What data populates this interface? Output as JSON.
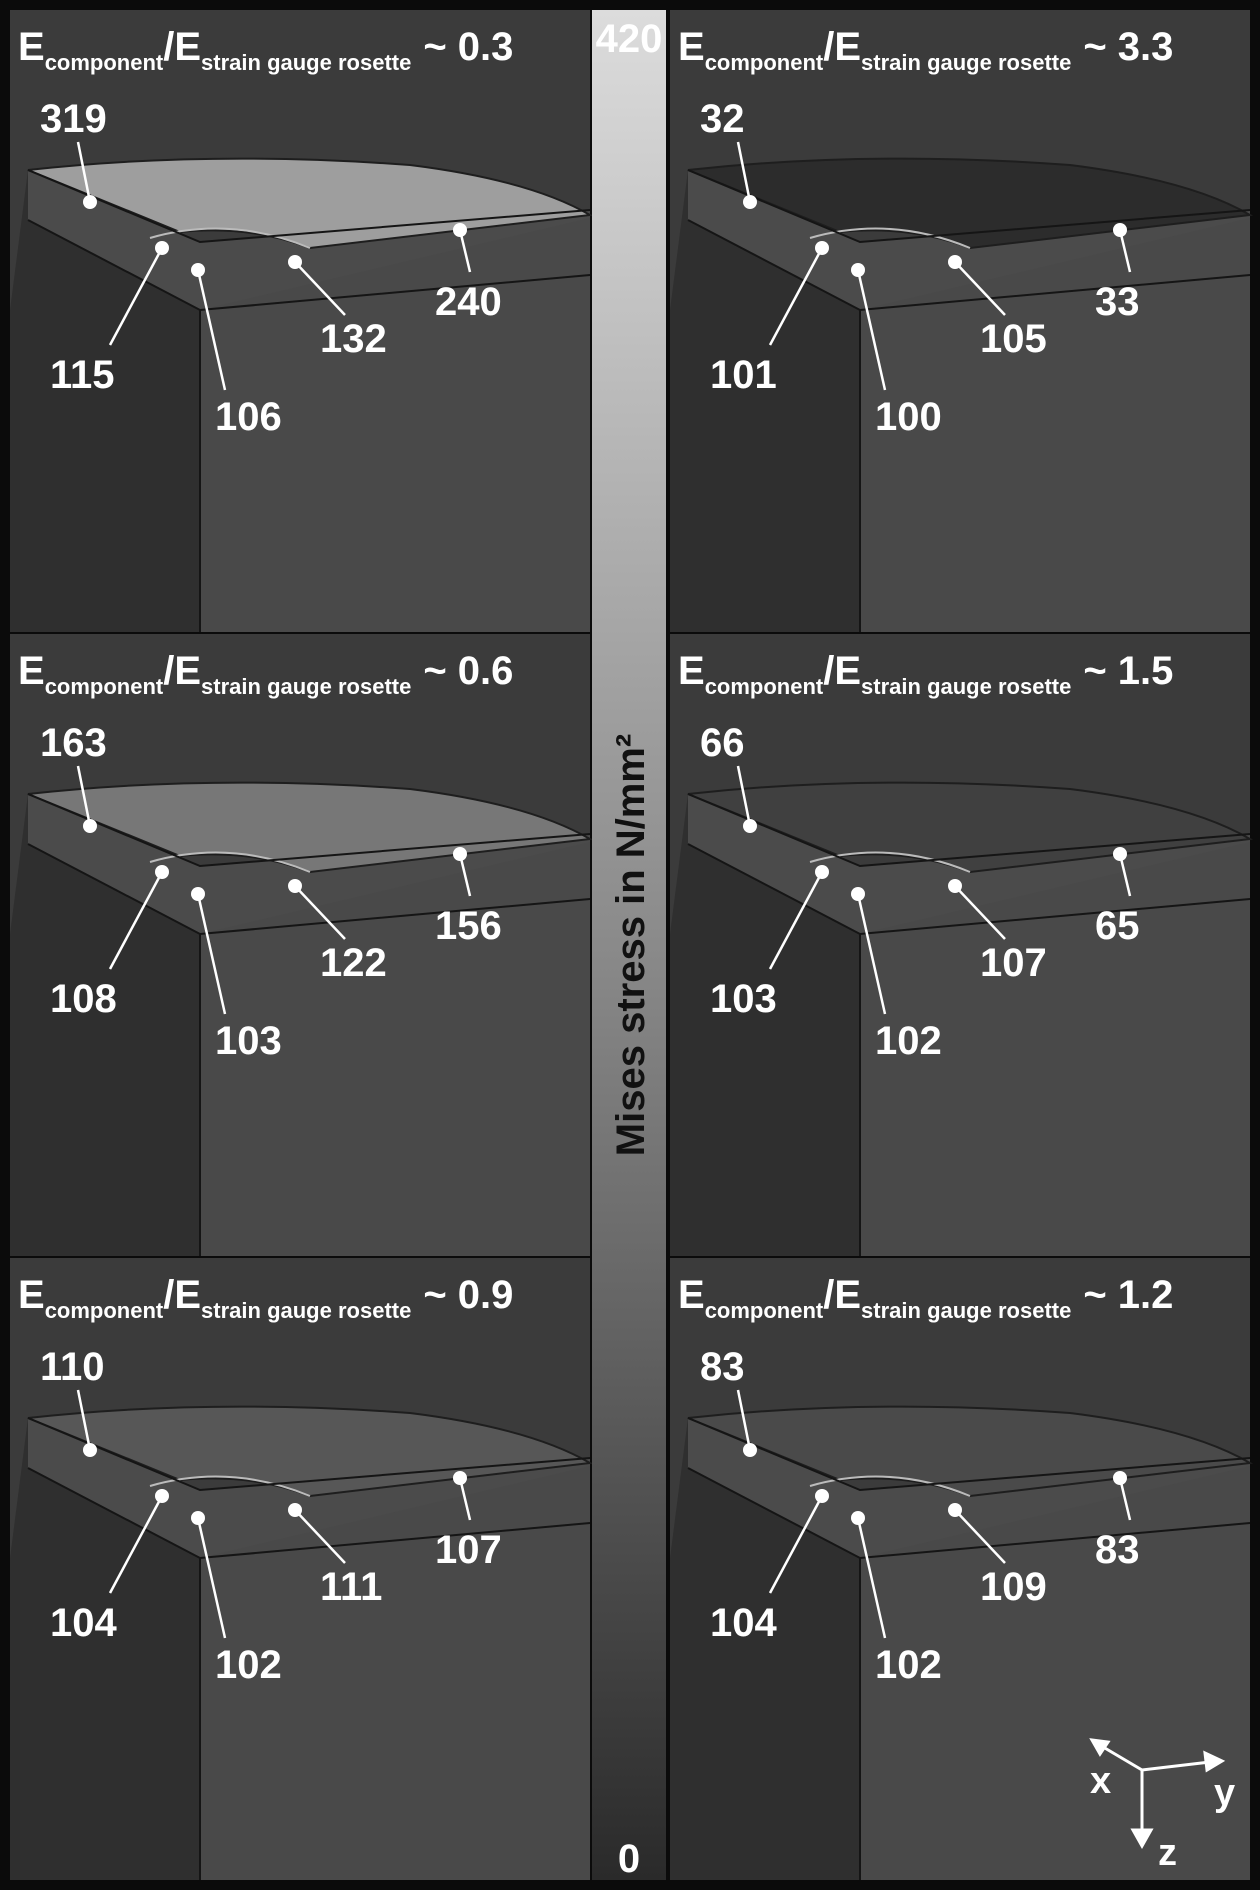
{
  "colorbar": {
    "label": "Mises stress in N/mm²",
    "max": "420",
    "min": "0"
  },
  "title_parts": {
    "e": "E",
    "component": "component",
    "slash": "/E",
    "rosette": "strain gauge rosette"
  },
  "axes": {
    "x": "x",
    "y": "y",
    "z": "z"
  },
  "panels": [
    {
      "ratio": "~ 0.3",
      "values": {
        "top": "319",
        "left_edge": "115",
        "corner": "106",
        "inner": "132",
        "right": "240"
      }
    },
    {
      "ratio": "~ 3.3",
      "values": {
        "top": "32",
        "left_edge": "101",
        "corner": "100",
        "inner": "105",
        "right": "33"
      }
    },
    {
      "ratio": "~ 0.6",
      "values": {
        "top": "163",
        "left_edge": "108",
        "corner": "103",
        "inner": "122",
        "right": "156"
      }
    },
    {
      "ratio": "~ 1.5",
      "values": {
        "top": "66",
        "left_edge": "103",
        "corner": "102",
        "inner": "107",
        "right": "65"
      }
    },
    {
      "ratio": "~ 0.9",
      "values": {
        "top": "110",
        "left_edge": "104",
        "corner": "102",
        "inner": "111",
        "right": "107"
      }
    },
    {
      "ratio": "~ 1.2",
      "values": {
        "top": "83",
        "left_edge": "104",
        "corner": "102",
        "inner": "109",
        "right": "83"
      }
    }
  ],
  "colors": {
    "background": "#3a3a3a",
    "frame": "#0a0a0a",
    "bar_top": "#dddddd",
    "bar_bottom": "#2a2a2a",
    "panel_fills": [
      "#9e9e9e",
      "#2c2c2c",
      "#777777",
      "#404040",
      "#575757",
      "#4a4a4a"
    ]
  }
}
